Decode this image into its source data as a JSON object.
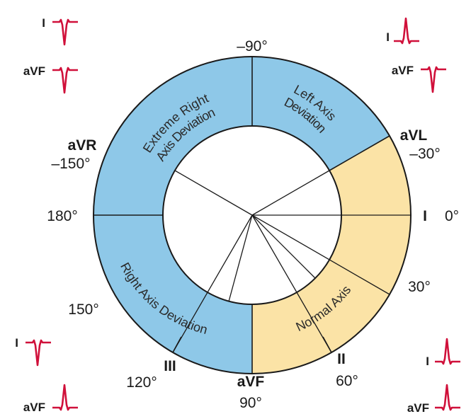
{
  "zones": [
    {
      "name": "Extreme Right Axis Deviation",
      "lines": [
        "Extreme Right",
        "Axis Deviation"
      ],
      "fill": "#8ec8e8"
    },
    {
      "name": "Left Axis Deviation",
      "lines": [
        "Left Axis",
        "Deviation"
      ],
      "fill": "#8ec8e8"
    },
    {
      "name": "Normal Axis",
      "lines": [
        "Normal Axis"
      ],
      "fill": "#fbe3a6"
    },
    {
      "name": "Right Axis Deviation",
      "lines": [
        "Right Axis Deviation"
      ],
      "fill": "#8ec8e8"
    }
  ],
  "angle_labels": {
    "minus90": "–90°",
    "minus150": "–150°",
    "minus30": "–30°",
    "deg180": "180°",
    "deg0": "0°",
    "deg30": "30°",
    "deg150": "150°",
    "deg120": "120°",
    "deg60": "60°",
    "deg90": "90°"
  },
  "lead_labels": {
    "aVR": "aVR",
    "aVL": "aVL",
    "I": "I",
    "III": "III",
    "aVF": "aVF",
    "II": "II"
  },
  "ekg_panels": {
    "top_left": {
      "lead1": "I",
      "lead2": "aVF",
      "lead1_polarity": "negative",
      "lead2_polarity": "negative"
    },
    "top_right": {
      "lead1": "I",
      "lead2": "aVF",
      "lead1_polarity": "positive",
      "lead2_polarity": "negative"
    },
    "bottom_left": {
      "lead1": "I",
      "lead2": "aVF",
      "lead1_polarity": "negative",
      "lead2_polarity": "positive"
    },
    "bottom_right": {
      "lead1": "I",
      "lead2": "aVF",
      "lead1_polarity": "positive",
      "lead2_polarity": "positive"
    }
  },
  "colors": {
    "deviation": "#8ec8e8",
    "normal": "#fbe3a6",
    "ekg": "#d0103a",
    "outline": "#1a1a1a"
  }
}
